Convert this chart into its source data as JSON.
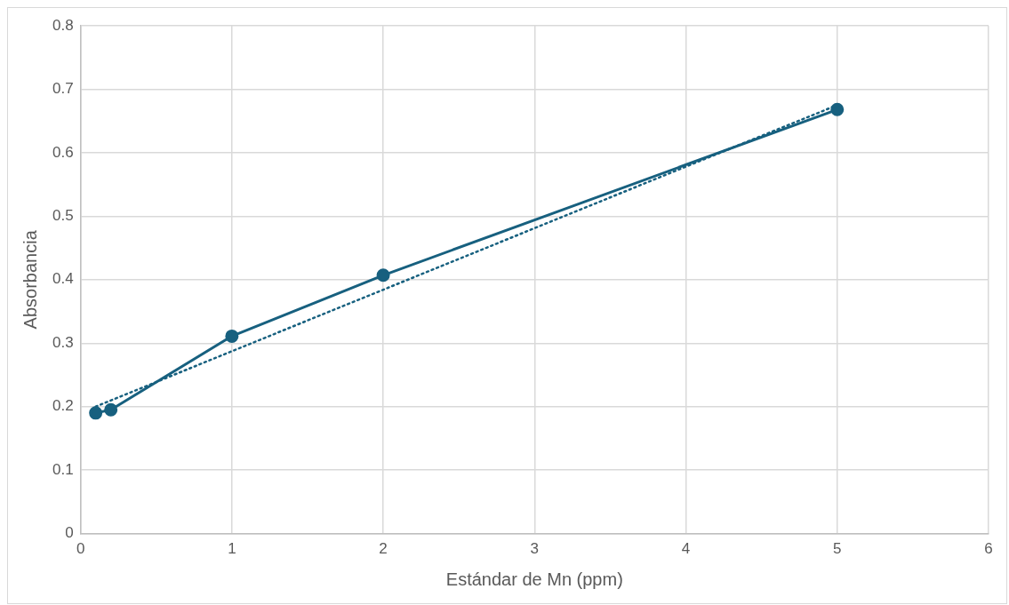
{
  "chart_data": {
    "type": "line",
    "xlabel": "Estándar de Mn (ppm)",
    "ylabel": "Absorbancia",
    "series": [
      {
        "type": "line",
        "color": "#17607f",
        "x": [
          0.1,
          0.2,
          1,
          2,
          5
        ],
        "values": [
          0.19,
          0.195,
          0.311,
          0.407,
          0.668
        ],
        "marker": "circle",
        "line_style": "solid"
      },
      {
        "type": "line",
        "color": "#17607f",
        "x": [
          0.1,
          5
        ],
        "values": [
          0.2,
          0.675
        ],
        "marker": "none",
        "line_style": "dotted"
      }
    ],
    "xlim": [
      0,
      6
    ],
    "xticks": [
      0,
      1,
      2,
      3,
      4,
      5,
      6
    ],
    "ylim": [
      0,
      0.8
    ],
    "yticks": [
      0,
      0.1,
      0.2,
      0.3,
      0.4,
      0.5,
      0.6,
      0.7,
      0.8
    ],
    "grid": true,
    "legend": false
  }
}
